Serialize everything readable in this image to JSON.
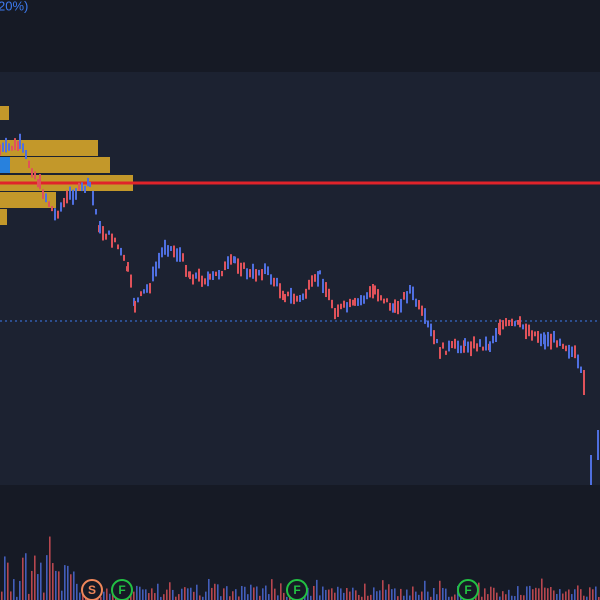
{
  "header": {
    "text": "20%)"
  },
  "markers": [
    {
      "label": "S"
    },
    {
      "label": "F"
    },
    {
      "label": "F"
    },
    {
      "label": "F"
    }
  ]
}
